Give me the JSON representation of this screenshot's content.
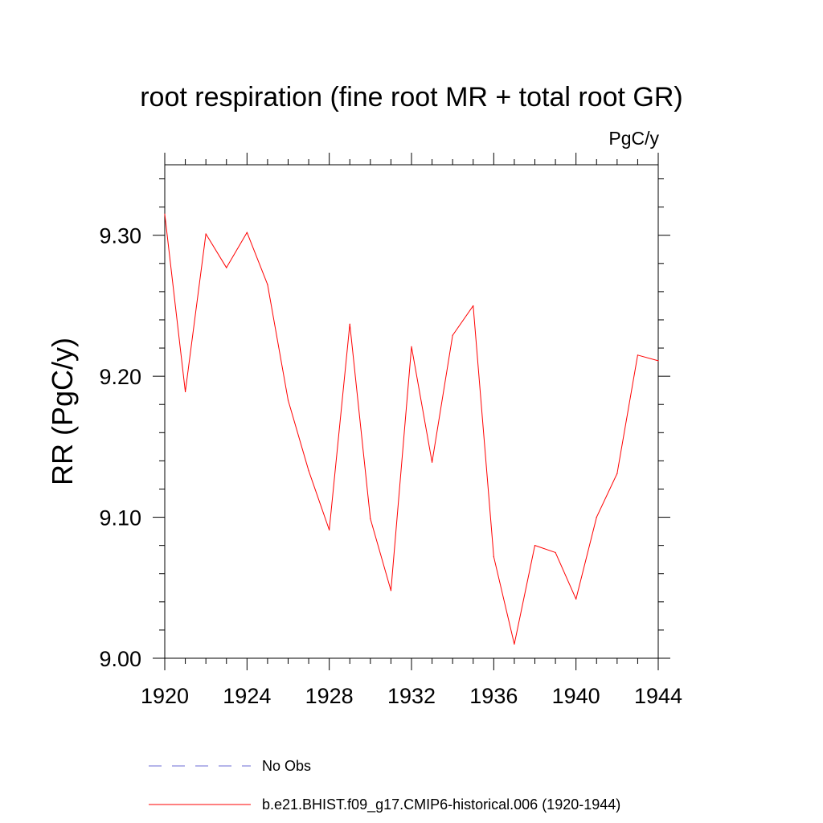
{
  "chart_data": {
    "type": "line",
    "title": "root respiration (fine root MR + total root GR)",
    "units_label": "PgC/y",
    "ylabel": "RR  (PgC/y)",
    "xlabel": "",
    "xlim": [
      1920,
      1944
    ],
    "ylim": [
      9.0,
      9.35
    ],
    "x_ticks": [
      1920,
      1924,
      1928,
      1932,
      1936,
      1940,
      1944
    ],
    "x_tick_labels": [
      "1920",
      "1924",
      "1928",
      "1932",
      "1936",
      "1940",
      "1944"
    ],
    "y_ticks": [
      9.0,
      9.1,
      9.2,
      9.3
    ],
    "y_tick_labels": [
      "9.00",
      "9.10",
      "9.20",
      "9.30"
    ],
    "grid": false,
    "legend_placement": "bottom",
    "series": [
      {
        "name": "b.e21.BHIST.f09_g17.CMIP6-historical.006 (1920-1944)",
        "color": "#ff0000",
        "style": "solid",
        "x": [
          1920,
          1921,
          1922,
          1923,
          1924,
          1925,
          1926,
          1927,
          1928,
          1929,
          1930,
          1931,
          1932,
          1933,
          1934,
          1935,
          1936,
          1937,
          1938,
          1939,
          1940,
          1941,
          1942,
          1943,
          1944
        ],
        "y": [
          9.315,
          9.189,
          9.301,
          9.277,
          9.302,
          9.265,
          9.183,
          9.133,
          9.091,
          9.237,
          9.099,
          9.048,
          9.221,
          9.139,
          9.229,
          9.25,
          9.072,
          9.01,
          9.08,
          9.075,
          9.042,
          9.1,
          9.131,
          9.215,
          9.211
        ]
      },
      {
        "name": "No Obs",
        "color": "#6b6bd6",
        "style": "dashed",
        "x": [],
        "y": []
      }
    ]
  }
}
